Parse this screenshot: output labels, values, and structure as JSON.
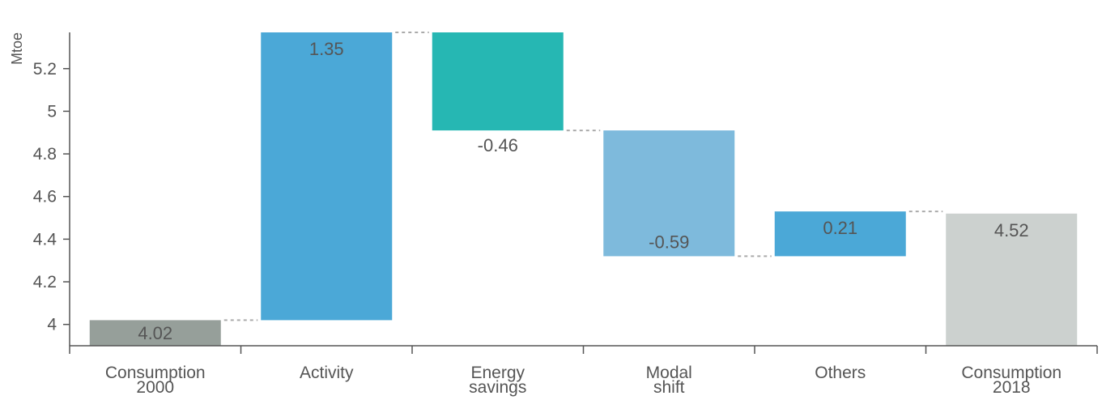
{
  "chart_data": {
    "type": "waterfall",
    "ylabel": "Mtoe",
    "ylim": [
      3.9,
      5.37
    ],
    "yticks": [
      4,
      4.2,
      4.4,
      4.6,
      4.8,
      5,
      5.2
    ],
    "ytick_labels": [
      "4",
      "4.2",
      "4.4",
      "4.6",
      "4.8",
      "5",
      "5.2"
    ],
    "grid": false,
    "steps": [
      {
        "category_lines": [
          "Consumption",
          "2000"
        ],
        "kind": "total",
        "value": 4.02,
        "label": "4.02",
        "color": "#969f9a"
      },
      {
        "category_lines": [
          "Activity"
        ],
        "kind": "delta",
        "value": 1.35,
        "label": "1.35",
        "color": "#4ba8d7"
      },
      {
        "category_lines": [
          "Energy",
          "savings"
        ],
        "kind": "delta",
        "value": -0.46,
        "label": "-0.46",
        "color": "#26b7b3"
      },
      {
        "category_lines": [
          "Modal",
          "shift"
        ],
        "kind": "delta",
        "value": -0.59,
        "label": "-0.59",
        "color": "#7ebadc"
      },
      {
        "category_lines": [
          "Others"
        ],
        "kind": "delta",
        "value": 0.21,
        "label": "0.21",
        "color": "#4ba8d7"
      },
      {
        "category_lines": [
          "Consumption",
          "2018"
        ],
        "kind": "total",
        "value": 4.52,
        "label": "4.52",
        "color": "#ccd1cf"
      }
    ]
  }
}
